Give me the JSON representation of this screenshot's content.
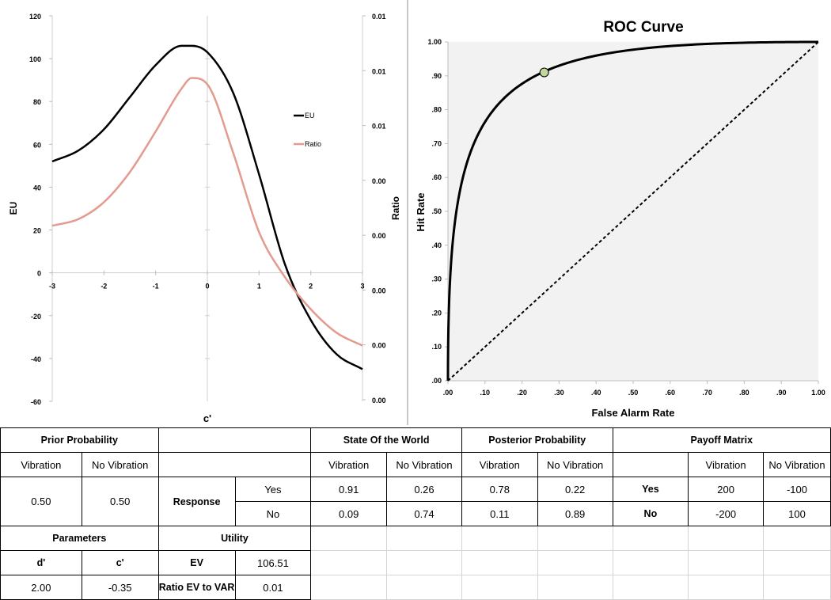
{
  "chart_data": [
    {
      "type": "line",
      "xlabel": "c'",
      "ylabel": "EU",
      "y2label": "Ratio",
      "xlim": [
        -3,
        3
      ],
      "ylim": [
        -60,
        120
      ],
      "x_ticks": [
        "-3",
        "-2",
        "-1",
        "0",
        "1",
        "2",
        "3"
      ],
      "y_ticks": [
        "120",
        "100",
        "80",
        "60",
        "40",
        "20",
        "0",
        "-20",
        "-40",
        "-60"
      ],
      "y2_ticks": [
        "0.01",
        "0.01",
        "0.01",
        "0.00",
        "0.00",
        "0.00",
        "0.00",
        "0.00"
      ],
      "legend_position": "right",
      "grid": false,
      "x": [
        -3,
        -2.5,
        -2,
        -1.5,
        -1,
        -0.5,
        -0.3,
        0,
        0.5,
        1,
        1.5,
        2,
        2.5,
        3
      ],
      "series": [
        {
          "name": "EU",
          "color": "#000000",
          "values": [
            52,
            57,
            67,
            82,
            97,
            106,
            106,
            103,
            84,
            46,
            4,
            -22,
            -38,
            -45
          ]
        },
        {
          "name": "Ratio",
          "color": "#e39a8f",
          "values": [
            22,
            25,
            33,
            47,
            66,
            86,
            91,
            88,
            56,
            19,
            -2,
            -17,
            -28,
            -34
          ]
        }
      ]
    },
    {
      "type": "line",
      "title": "ROC Curve",
      "xlabel": "False Alarm Rate",
      "ylabel": "Hit Rate",
      "xlim": [
        0,
        1
      ],
      "ylim": [
        0,
        1
      ],
      "x_ticks": [
        ".00",
        ".10",
        ".20",
        ".30",
        ".40",
        ".50",
        ".60",
        ".70",
        ".80",
        ".90",
        "1.00"
      ],
      "y_ticks": [
        ".00",
        ".10",
        ".20",
        ".30",
        ".40",
        ".50",
        ".60",
        ".70",
        ".80",
        ".90",
        "1.00"
      ],
      "d_prime": 2.0,
      "point": {
        "x": 0.26,
        "y": 0.91
      },
      "grid": false,
      "background": "#f2f2f2",
      "colors": {
        "curve": "#000000",
        "diagonal": "#000000",
        "point_fill": "#c3d69b"
      }
    }
  ],
  "table": {
    "prior": {
      "header": "Prior Probability",
      "vibration": "Vibration",
      "no_vibration": "No Vibration",
      "v_value": "0.50",
      "nv_value": "0.50"
    },
    "response": {
      "label": "Response",
      "yes": "Yes",
      "no": "No"
    },
    "state": {
      "header": "State Of the World",
      "vibration": "Vibration",
      "no_vibration": "No Vibration",
      "yes_v": "0.91",
      "yes_nv": "0.26",
      "no_v": "0.09",
      "no_nv": "0.74"
    },
    "posterior": {
      "header": "Posterior Probability",
      "vibration": "Vibration",
      "no_vibration": "No Vibration",
      "yes_v": "0.78",
      "yes_nv": "0.22",
      "no_v": "0.11",
      "no_nv": "0.89"
    },
    "payoff": {
      "header": "Payoff Matrix",
      "vibration": "Vibration",
      "no_vibration": "No Vibration",
      "yes": "Yes",
      "no": "No",
      "yes_v": "200",
      "yes_nv": "-100",
      "no_v": "-200",
      "no_nv": "100"
    },
    "parameters": {
      "header": "Parameters",
      "d_label": "d'",
      "c_label": "c'",
      "d_value": "2.00",
      "c_value": "-0.35"
    },
    "utility": {
      "header": "Utility",
      "ev_label": "EV",
      "ev_value": "106.51",
      "ratio_label": "Ratio EV to VAR",
      "ratio_value": "0.01"
    }
  }
}
